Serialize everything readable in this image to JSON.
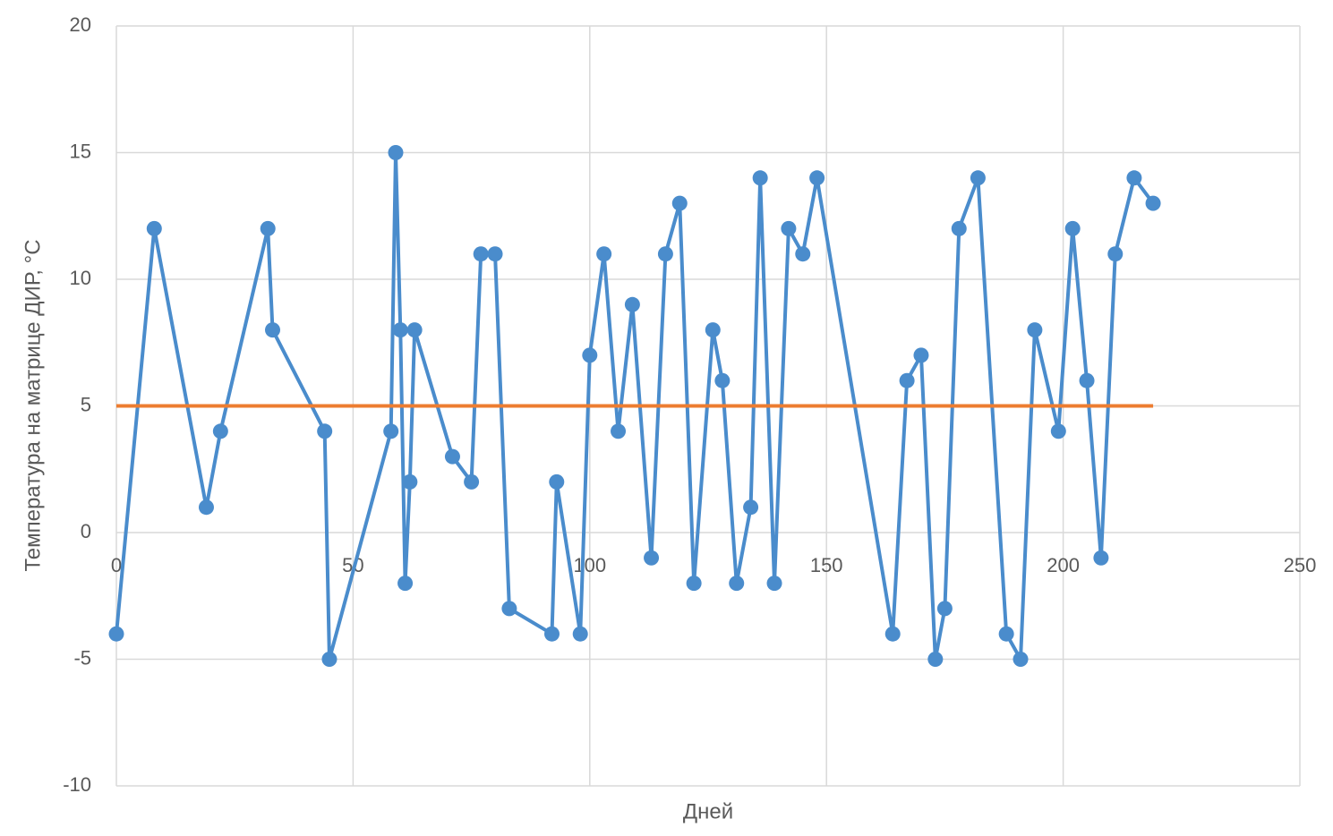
{
  "chart_data": {
    "type": "line",
    "x_label": "Дней",
    "y_label": "Температура на матрице ДИР, °С",
    "xlim": [
      0,
      250
    ],
    "xticks": [
      0,
      50,
      100,
      150,
      200,
      250
    ],
    "ylim": [
      -10,
      20
    ],
    "yticks": [
      -10,
      -5,
      0,
      5,
      10,
      15,
      20
    ],
    "grid": true,
    "series": [
      {
        "color": "#4a8ccc",
        "markers": true,
        "x": [
          0,
          8,
          19,
          22,
          32,
          33,
          44,
          45,
          58,
          59,
          60,
          61,
          62,
          63,
          71,
          75,
          77,
          80,
          83,
          92,
          93,
          98,
          100,
          103,
          106,
          109,
          113,
          116,
          119,
          122,
          126,
          128,
          131,
          134,
          136,
          139,
          142,
          145,
          148,
          164,
          167,
          170,
          173,
          175,
          178,
          182,
          188,
          191,
          194,
          199,
          202,
          205,
          208,
          211,
          215,
          219
        ],
        "values": [
          -4,
          12,
          1,
          4,
          12,
          8,
          4,
          -5,
          4,
          15,
          8,
          -2,
          2,
          8,
          3,
          2,
          11,
          11,
          -3,
          -4,
          2,
          -4,
          7,
          11,
          4,
          9,
          -1,
          11,
          13,
          -2,
          8,
          6,
          -2,
          1,
          14,
          -2,
          12,
          11,
          14,
          -4,
          6,
          7,
          -5,
          -3,
          12,
          14,
          -4,
          -5,
          8,
          4,
          12,
          6,
          -1,
          11,
          14,
          13
        ]
      },
      {
        "color": "#ed7d31",
        "markers": false,
        "x": [
          0,
          219
        ],
        "values": [
          5,
          5
        ]
      }
    ]
  }
}
